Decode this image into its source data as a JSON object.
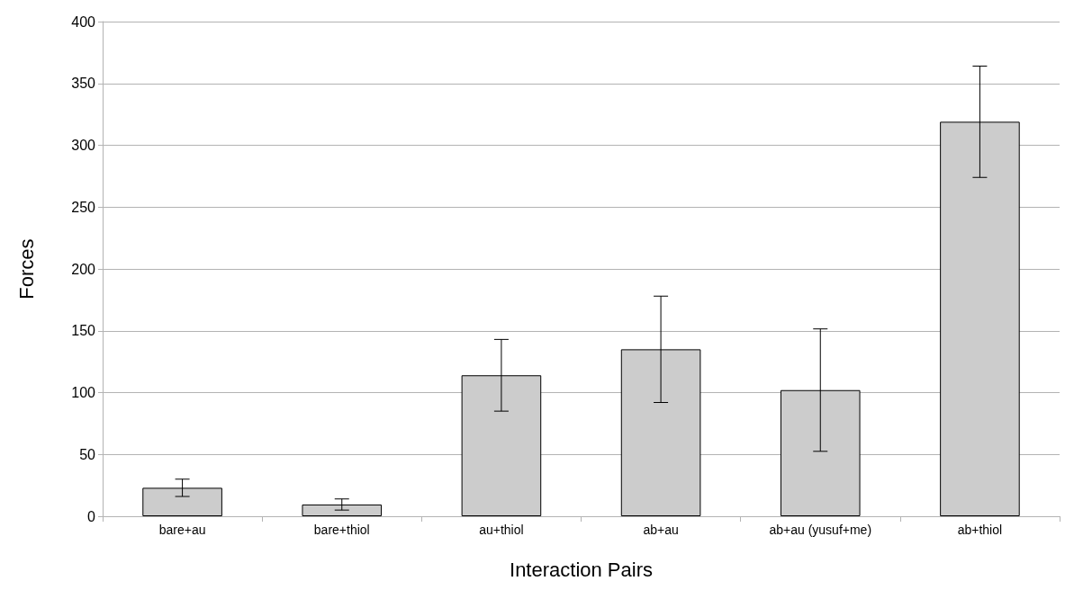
{
  "chart_data": {
    "type": "bar",
    "xlabel": "Interaction Pairs",
    "ylabel": "Forces",
    "categories": [
      "bare+au",
      "bare+thiol",
      "au+thiol",
      "ab+au",
      "ab+au (yusuf+me)",
      "ab+thiol"
    ],
    "values": [
      23,
      9.5,
      114,
      135,
      102,
      319
    ],
    "errors": [
      7,
      4.5,
      29,
      43,
      49.5,
      45
    ],
    "color": "#cccccc",
    "ylim": [
      0,
      400
    ],
    "yticks": [
      0,
      50,
      100,
      150,
      200,
      250,
      300,
      350,
      400
    ],
    "grid": "y"
  }
}
